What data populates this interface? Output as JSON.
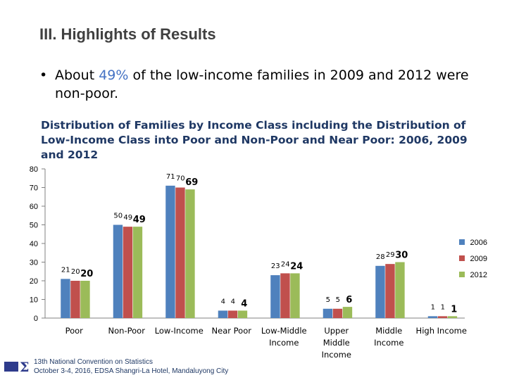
{
  "slide": {
    "title": "III. Highlights of Results",
    "bullet_pre": "About ",
    "bullet_highlight": "49%",
    "bullet_post": " of the low-income families in 2009 and 2012 were non-poor.",
    "footer_line1": "13th National Convention on Statistics",
    "footer_line2": "October 3-4, 2016, EDSA Shangri-La Hotel, Mandaluyong City"
  },
  "chart_data": {
    "type": "bar",
    "title": "Distribution of Families by Income Class including the Distribution of Low-Income Class into  Poor and Non-Poor and Near Poor: 2006, 2009 and 2012",
    "categories": [
      [
        "Poor"
      ],
      [
        "Non-Poor"
      ],
      [
        "Low-Income"
      ],
      [
        "Near Poor"
      ],
      [
        "Low-Middle",
        "Income"
      ],
      [
        "Upper",
        "Middle",
        "Income"
      ],
      [
        "Middle",
        "Income"
      ],
      [
        "High Income"
      ]
    ],
    "series": [
      {
        "name": "2006",
        "values": [
          21,
          50,
          71,
          4,
          23,
          5,
          28,
          1
        ],
        "labels": [
          "21",
          "50",
          "71",
          "4",
          "23",
          "5",
          "28",
          "1"
        ],
        "color": "#4f81bd"
      },
      {
        "name": "2009",
        "values": [
          20,
          49,
          70,
          4,
          24,
          5,
          29,
          1
        ],
        "labels": [
          "20",
          "49",
          "70",
          "4",
          "24",
          "5",
          "29",
          "1"
        ],
        "color": "#c0504d"
      },
      {
        "name": "2012",
        "values": [
          20,
          49,
          69,
          4,
          24,
          6,
          30,
          1
        ],
        "labels": [
          "20",
          "49",
          "69",
          "4",
          "24",
          "6",
          "30",
          "1"
        ],
        "color": "#9bbb59"
      }
    ],
    "ylim": [
      0,
      80
    ],
    "yticks": [
      "0",
      "10",
      "20",
      "30",
      "40",
      "50",
      "60",
      "70",
      "80"
    ],
    "grid": false,
    "legend": "right"
  }
}
